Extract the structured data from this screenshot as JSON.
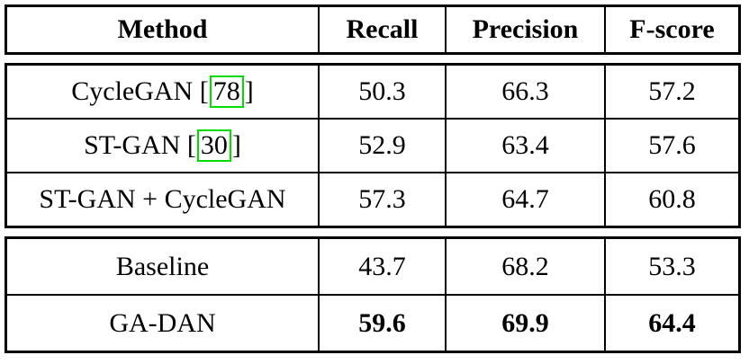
{
  "table": {
    "columns": [
      "Method",
      "Recall",
      "Precision",
      "F-score"
    ],
    "cite_open": " [",
    "cite_close": "]",
    "colors": {
      "citation_box": "#00dd00",
      "border": "#000000",
      "background": "#ffffff"
    },
    "sections": [
      {
        "rows": [
          {
            "label": "CycleGAN",
            "cite": "78",
            "recall": "50.3",
            "precision": "66.3",
            "fscore": "57.2"
          },
          {
            "label": "ST-GAN",
            "cite": "30",
            "recall": "52.9",
            "precision": "63.4",
            "fscore": "57.6"
          },
          {
            "label": "ST-GAN + CycleGAN",
            "recall": "57.3",
            "precision": "64.7",
            "fscore": "60.8"
          }
        ]
      },
      {
        "rows": [
          {
            "label": "Baseline",
            "recall": "43.7",
            "precision": "68.2",
            "fscore": "53.3"
          },
          {
            "label": "GA-DAN",
            "recall": "59.6",
            "precision": "69.9",
            "fscore": "64.4"
          }
        ]
      }
    ]
  }
}
